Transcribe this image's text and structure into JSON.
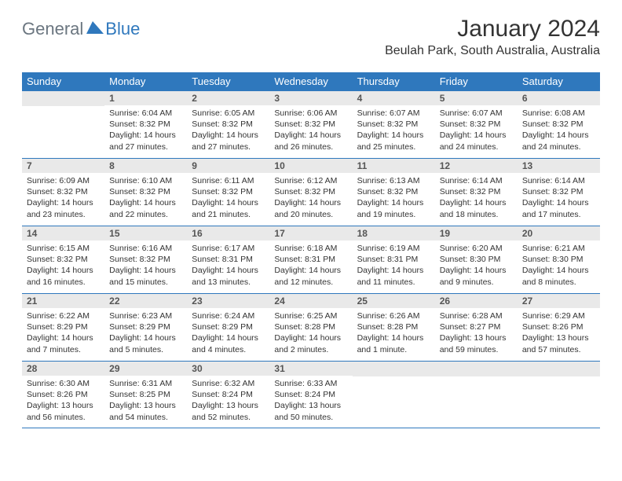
{
  "logo": {
    "text1": "General",
    "text2": "Blue"
  },
  "title": "January 2024",
  "location": "Beulah Park, South Australia, Australia",
  "colors": {
    "accent": "#2f78bd",
    "header_bg": "#2f78bd",
    "header_text": "#ffffff",
    "daynum_bg": "#e9e9e9",
    "daynum_text": "#555555",
    "body_text": "#333333",
    "background": "#ffffff"
  },
  "day_headers": [
    "Sunday",
    "Monday",
    "Tuesday",
    "Wednesday",
    "Thursday",
    "Friday",
    "Saturday"
  ],
  "weeks": [
    [
      {
        "day": "",
        "sunrise": "",
        "sunset": "",
        "daylight": ""
      },
      {
        "day": "1",
        "sunrise": "Sunrise: 6:04 AM",
        "sunset": "Sunset: 8:32 PM",
        "daylight": "Daylight: 14 hours and 27 minutes."
      },
      {
        "day": "2",
        "sunrise": "Sunrise: 6:05 AM",
        "sunset": "Sunset: 8:32 PM",
        "daylight": "Daylight: 14 hours and 27 minutes."
      },
      {
        "day": "3",
        "sunrise": "Sunrise: 6:06 AM",
        "sunset": "Sunset: 8:32 PM",
        "daylight": "Daylight: 14 hours and 26 minutes."
      },
      {
        "day": "4",
        "sunrise": "Sunrise: 6:07 AM",
        "sunset": "Sunset: 8:32 PM",
        "daylight": "Daylight: 14 hours and 25 minutes."
      },
      {
        "day": "5",
        "sunrise": "Sunrise: 6:07 AM",
        "sunset": "Sunset: 8:32 PM",
        "daylight": "Daylight: 14 hours and 24 minutes."
      },
      {
        "day": "6",
        "sunrise": "Sunrise: 6:08 AM",
        "sunset": "Sunset: 8:32 PM",
        "daylight": "Daylight: 14 hours and 24 minutes."
      }
    ],
    [
      {
        "day": "7",
        "sunrise": "Sunrise: 6:09 AM",
        "sunset": "Sunset: 8:32 PM",
        "daylight": "Daylight: 14 hours and 23 minutes."
      },
      {
        "day": "8",
        "sunrise": "Sunrise: 6:10 AM",
        "sunset": "Sunset: 8:32 PM",
        "daylight": "Daylight: 14 hours and 22 minutes."
      },
      {
        "day": "9",
        "sunrise": "Sunrise: 6:11 AM",
        "sunset": "Sunset: 8:32 PM",
        "daylight": "Daylight: 14 hours and 21 minutes."
      },
      {
        "day": "10",
        "sunrise": "Sunrise: 6:12 AM",
        "sunset": "Sunset: 8:32 PM",
        "daylight": "Daylight: 14 hours and 20 minutes."
      },
      {
        "day": "11",
        "sunrise": "Sunrise: 6:13 AM",
        "sunset": "Sunset: 8:32 PM",
        "daylight": "Daylight: 14 hours and 19 minutes."
      },
      {
        "day": "12",
        "sunrise": "Sunrise: 6:14 AM",
        "sunset": "Sunset: 8:32 PM",
        "daylight": "Daylight: 14 hours and 18 minutes."
      },
      {
        "day": "13",
        "sunrise": "Sunrise: 6:14 AM",
        "sunset": "Sunset: 8:32 PM",
        "daylight": "Daylight: 14 hours and 17 minutes."
      }
    ],
    [
      {
        "day": "14",
        "sunrise": "Sunrise: 6:15 AM",
        "sunset": "Sunset: 8:32 PM",
        "daylight": "Daylight: 14 hours and 16 minutes."
      },
      {
        "day": "15",
        "sunrise": "Sunrise: 6:16 AM",
        "sunset": "Sunset: 8:32 PM",
        "daylight": "Daylight: 14 hours and 15 minutes."
      },
      {
        "day": "16",
        "sunrise": "Sunrise: 6:17 AM",
        "sunset": "Sunset: 8:31 PM",
        "daylight": "Daylight: 14 hours and 13 minutes."
      },
      {
        "day": "17",
        "sunrise": "Sunrise: 6:18 AM",
        "sunset": "Sunset: 8:31 PM",
        "daylight": "Daylight: 14 hours and 12 minutes."
      },
      {
        "day": "18",
        "sunrise": "Sunrise: 6:19 AM",
        "sunset": "Sunset: 8:31 PM",
        "daylight": "Daylight: 14 hours and 11 minutes."
      },
      {
        "day": "19",
        "sunrise": "Sunrise: 6:20 AM",
        "sunset": "Sunset: 8:30 PM",
        "daylight": "Daylight: 14 hours and 9 minutes."
      },
      {
        "day": "20",
        "sunrise": "Sunrise: 6:21 AM",
        "sunset": "Sunset: 8:30 PM",
        "daylight": "Daylight: 14 hours and 8 minutes."
      }
    ],
    [
      {
        "day": "21",
        "sunrise": "Sunrise: 6:22 AM",
        "sunset": "Sunset: 8:29 PM",
        "daylight": "Daylight: 14 hours and 7 minutes."
      },
      {
        "day": "22",
        "sunrise": "Sunrise: 6:23 AM",
        "sunset": "Sunset: 8:29 PM",
        "daylight": "Daylight: 14 hours and 5 minutes."
      },
      {
        "day": "23",
        "sunrise": "Sunrise: 6:24 AM",
        "sunset": "Sunset: 8:29 PM",
        "daylight": "Daylight: 14 hours and 4 minutes."
      },
      {
        "day": "24",
        "sunrise": "Sunrise: 6:25 AM",
        "sunset": "Sunset: 8:28 PM",
        "daylight": "Daylight: 14 hours and 2 minutes."
      },
      {
        "day": "25",
        "sunrise": "Sunrise: 6:26 AM",
        "sunset": "Sunset: 8:28 PM",
        "daylight": "Daylight: 14 hours and 1 minute."
      },
      {
        "day": "26",
        "sunrise": "Sunrise: 6:28 AM",
        "sunset": "Sunset: 8:27 PM",
        "daylight": "Daylight: 13 hours and 59 minutes."
      },
      {
        "day": "27",
        "sunrise": "Sunrise: 6:29 AM",
        "sunset": "Sunset: 8:26 PM",
        "daylight": "Daylight: 13 hours and 57 minutes."
      }
    ],
    [
      {
        "day": "28",
        "sunrise": "Sunrise: 6:30 AM",
        "sunset": "Sunset: 8:26 PM",
        "daylight": "Daylight: 13 hours and 56 minutes."
      },
      {
        "day": "29",
        "sunrise": "Sunrise: 6:31 AM",
        "sunset": "Sunset: 8:25 PM",
        "daylight": "Daylight: 13 hours and 54 minutes."
      },
      {
        "day": "30",
        "sunrise": "Sunrise: 6:32 AM",
        "sunset": "Sunset: 8:24 PM",
        "daylight": "Daylight: 13 hours and 52 minutes."
      },
      {
        "day": "31",
        "sunrise": "Sunrise: 6:33 AM",
        "sunset": "Sunset: 8:24 PM",
        "daylight": "Daylight: 13 hours and 50 minutes."
      },
      {
        "day": "",
        "sunrise": "",
        "sunset": "",
        "daylight": ""
      },
      {
        "day": "",
        "sunrise": "",
        "sunset": "",
        "daylight": ""
      },
      {
        "day": "",
        "sunrise": "",
        "sunset": "",
        "daylight": ""
      }
    ]
  ]
}
